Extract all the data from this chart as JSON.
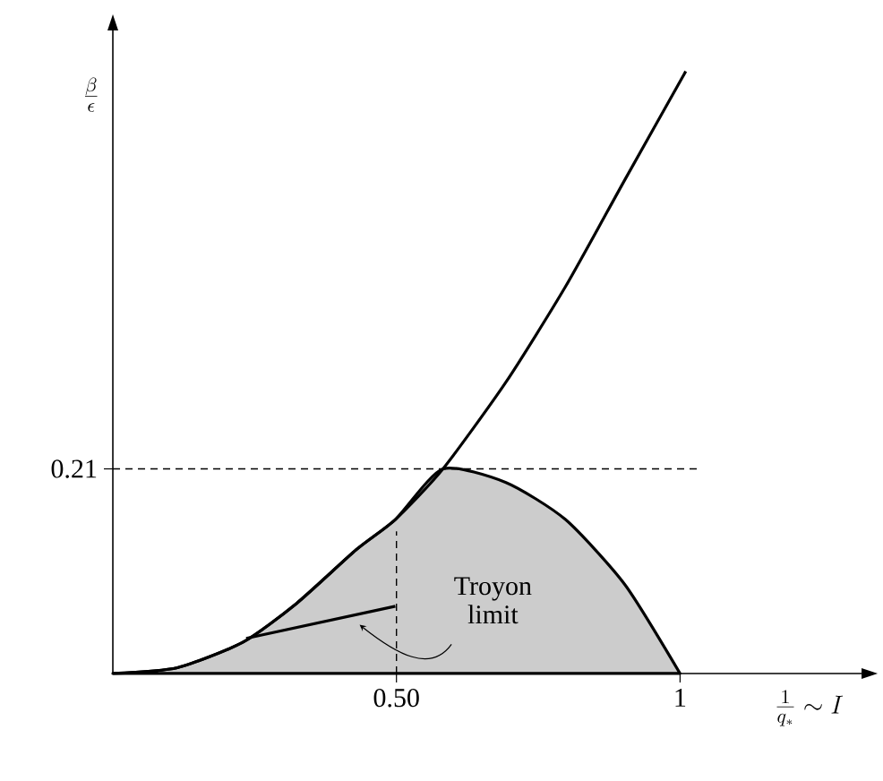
{
  "chart_data": {
    "type": "line",
    "xlabel": "\\frac{1}{q_*}\\sim I",
    "ylabel": "\\frac{\\beta}{\\epsilon}",
    "xlim": [
      0,
      1.32
    ],
    "ylim": [
      0,
      0.66
    ],
    "xticks": [
      {
        "value": 0.5,
        "label": "0.50"
      },
      1
    ],
    "yticks": [
      0.21
    ],
    "marker": "none",
    "series": [
      {
        "type": "area",
        "color": "#cccccc",
        "x": [
          0,
          0.114,
          0.229,
          0.324,
          0.429,
          0.498,
          0.582,
          0.693,
          0.798,
          0.903,
          1
        ],
        "values": [
          0,
          0.006,
          0.032,
          0.072,
          0.127,
          0.158,
          0.21,
          0.196,
          0.158,
          0.091,
          0
        ]
      },
      {
        "color": "#000000",
        "line_style": "solid",
        "x": [
          0,
          0.114,
          0.229,
          0.324,
          0.429,
          0.498,
          0.582,
          0.693,
          0.798,
          0.903,
          1.01
        ],
        "values": [
          0,
          0.006,
          0.032,
          0.072,
          0.127,
          0.158,
          0.21,
          0.299,
          0.397,
          0.507,
          0.618
        ]
      },
      {
        "color": "#000000",
        "line_style": "solid",
        "x": [
          0.235,
          0.498
        ],
        "values": [
          0.036,
          0.069
        ]
      },
      {
        "color": "#000000",
        "line_style": "dashed",
        "x": [
          0.5,
          0.5
        ],
        "values": [
          0,
          0.146
        ]
      },
      {
        "color": "#000000",
        "line_style": "dashed",
        "x": [
          0,
          1.03
        ],
        "values": [
          0.21,
          0.21
        ]
      }
    ],
    "annotations": [
      "Troyon limit"
    ]
  }
}
